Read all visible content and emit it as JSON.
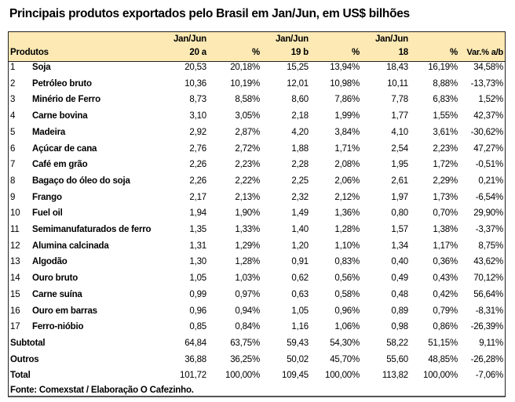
{
  "title": "Principais produtos exportados pelo Brasil em Jan/Jun, em US$ bilhões",
  "header": {
    "produtos": "Produtos",
    "cols": [
      {
        "top": "Jan/Jun",
        "bottom": "20 a"
      },
      {
        "top": "",
        "bottom": "%"
      },
      {
        "top": "Jan/Jun",
        "bottom": "19 b"
      },
      {
        "top": "",
        "bottom": "%"
      },
      {
        "top": "Jan/Jun",
        "bottom": "18"
      },
      {
        "top": "",
        "bottom": "%"
      },
      {
        "top": "",
        "bottom": "Var.% a/b"
      }
    ]
  },
  "rows": [
    {
      "n": "1",
      "name": "Soja",
      "v": [
        "20,53",
        "20,18%",
        "15,25",
        "13,94%",
        "18,43",
        "16,19%",
        "34,58%"
      ]
    },
    {
      "n": "2",
      "name": "Petróleo bruto",
      "v": [
        "10,36",
        "10,19%",
        "12,01",
        "10,98%",
        "10,11",
        "8,88%",
        "-13,73%"
      ]
    },
    {
      "n": "3",
      "name": "Minério de Ferro",
      "v": [
        "8,73",
        "8,58%",
        "8,60",
        "7,86%",
        "7,78",
        "6,83%",
        "1,52%"
      ]
    },
    {
      "n": "4",
      "name": "Carne bovina",
      "v": [
        "3,10",
        "3,05%",
        "2,18",
        "1,99%",
        "1,77",
        "1,55%",
        "42,37%"
      ]
    },
    {
      "n": "5",
      "name": "Madeira",
      "v": [
        "2,92",
        "2,87%",
        "4,20",
        "3,84%",
        "4,10",
        "3,61%",
        "-30,62%"
      ]
    },
    {
      "n": "6",
      "name": "Açúcar de cana",
      "v": [
        "2,76",
        "2,72%",
        "1,88",
        "1,71%",
        "2,54",
        "2,23%",
        "47,27%"
      ]
    },
    {
      "n": "7",
      "name": "Café em grão",
      "v": [
        "2,26",
        "2,23%",
        "2,28",
        "2,08%",
        "1,95",
        "1,72%",
        "-0,51%"
      ]
    },
    {
      "n": "8",
      "name": "Bagaço do óleo do soja",
      "v": [
        "2,26",
        "2,22%",
        "2,25",
        "2,06%",
        "2,61",
        "2,29%",
        "0,21%"
      ]
    },
    {
      "n": "9",
      "name": "Frango",
      "v": [
        "2,17",
        "2,13%",
        "2,32",
        "2,12%",
        "1,97",
        "1,73%",
        "-6,54%"
      ]
    },
    {
      "n": "10",
      "name": "Fuel oil",
      "v": [
        "1,94",
        "1,90%",
        "1,49",
        "1,36%",
        "0,80",
        "0,70%",
        "29,90%"
      ]
    },
    {
      "n": "11",
      "name": "Semimanufaturados de ferro",
      "v": [
        "1,35",
        "1,33%",
        "1,40",
        "1,28%",
        "1,57",
        "1,38%",
        "-3,37%"
      ]
    },
    {
      "n": "12",
      "name": "Alumina calcinada",
      "v": [
        "1,31",
        "1,29%",
        "1,20",
        "1,10%",
        "1,34",
        "1,17%",
        "8,75%"
      ]
    },
    {
      "n": "13",
      "name": "Algodão",
      "v": [
        "1,30",
        "1,28%",
        "0,91",
        "0,83%",
        "0,40",
        "0,36%",
        "43,62%"
      ]
    },
    {
      "n": "14",
      "name": "Ouro bruto",
      "v": [
        "1,05",
        "1,03%",
        "0,62",
        "0,56%",
        "0,49",
        "0,43%",
        "70,12%"
      ]
    },
    {
      "n": "15",
      "name": "Carne suína",
      "v": [
        "0,99",
        "0,97%",
        "0,63",
        "0,58%",
        "0,48",
        "0,42%",
        "56,64%"
      ]
    },
    {
      "n": "16",
      "name": "Ouro em barras",
      "v": [
        "0,96",
        "0,94%",
        "1,05",
        "0,96%",
        "0,89",
        "0,79%",
        "-8,31%"
      ]
    },
    {
      "n": "17",
      "name": "Ferro-nióbio",
      "v": [
        "0,85",
        "0,84%",
        "1,16",
        "1,06%",
        "0,98",
        "0,86%",
        "-26,39%"
      ]
    }
  ],
  "summary": [
    {
      "name": "Subtotal",
      "v": [
        "64,84",
        "63,75%",
        "59,43",
        "54,30%",
        "58,22",
        "51,15%",
        "9,11%"
      ]
    },
    {
      "name": "Outros",
      "v": [
        "36,88",
        "36,25%",
        "50,02",
        "45,70%",
        "55,60",
        "48,85%",
        "-26,28%"
      ]
    },
    {
      "name": "Total",
      "v": [
        "101,72",
        "100,00%",
        "109,45",
        "100,00%",
        "113,82",
        "100,00%",
        "-7,06%"
      ]
    }
  ],
  "source": "Fonte: Comexstat / Elaboração O Cafezinho."
}
